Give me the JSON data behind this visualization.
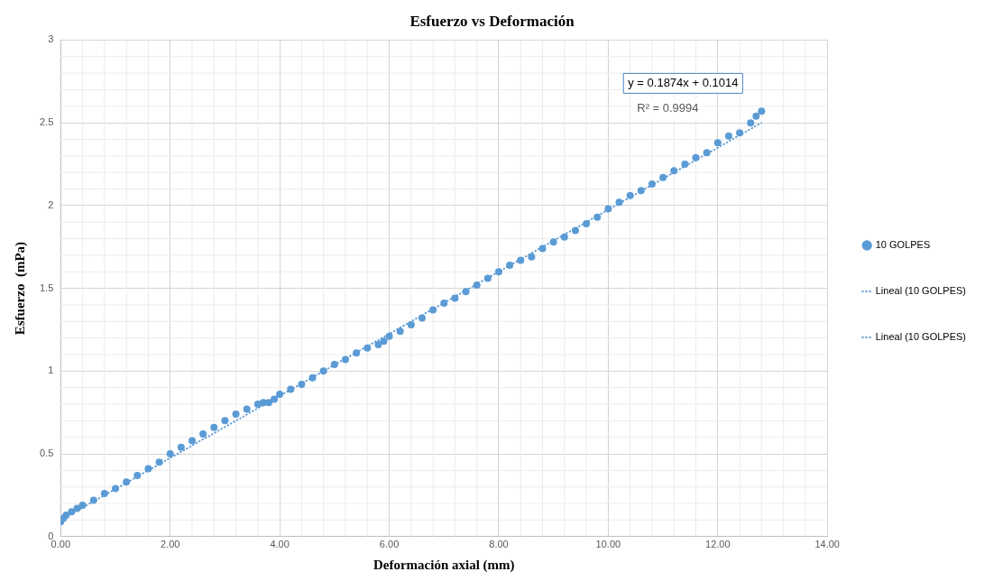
{
  "chart_data": {
    "type": "scatter",
    "title": "Esfuerzo vs Deformación",
    "xlabel": "Deformación axial (mm)",
    "ylabel": "Esfuerzo  (mPa)",
    "xlim": [
      0,
      14
    ],
    "xticks": [
      {
        "value": 0,
        "label": "0.00"
      },
      {
        "value": 2,
        "label": "2.00"
      },
      {
        "value": 4,
        "label": "4.00"
      },
      {
        "value": 6,
        "label": "6.00"
      },
      {
        "value": 8,
        "label": "8.00"
      },
      {
        "value": 10,
        "label": "10.00"
      },
      {
        "value": 12,
        "label": "12.00"
      },
      {
        "value": 14,
        "label": "14.00"
      }
    ],
    "ylim": [
      0,
      3
    ],
    "yticks": [
      0,
      0.5,
      1,
      1.5,
      2,
      2.5,
      3
    ],
    "grid": true,
    "legend": "right",
    "annotations": [
      "y = 0.1874x + 0.1014",
      "R² = 0.9994"
    ],
    "series": [
      {
        "name": "10 GOLPES",
        "color": "#5b9bd5",
        "marker": "circle",
        "x": [
          0,
          0.05,
          0.1,
          0.2,
          0.3,
          0.4,
          0.6,
          0.8,
          1.0,
          1.2,
          1.4,
          1.6,
          1.8,
          2.0,
          2.2,
          2.4,
          2.6,
          2.8,
          3.0,
          3.2,
          3.4,
          3.6,
          3.7,
          3.8,
          3.9,
          4.0,
          4.2,
          4.4,
          4.6,
          4.8,
          5.0,
          5.2,
          5.4,
          5.6,
          5.8,
          5.9,
          6.0,
          6.2,
          6.4,
          6.6,
          6.8,
          7.0,
          7.2,
          7.4,
          7.6,
          7.8,
          8.0,
          8.2,
          8.4,
          8.6,
          8.8,
          9.0,
          9.2,
          9.4,
          9.6,
          9.8,
          10.0,
          10.2,
          10.4,
          10.6,
          10.8,
          11.0,
          11.2,
          11.4,
          11.6,
          11.8,
          12.0,
          12.2,
          12.4,
          12.6,
          12.7,
          12.8
        ],
        "values": [
          0.09,
          0.11,
          0.13,
          0.15,
          0.17,
          0.19,
          0.22,
          0.26,
          0.29,
          0.33,
          0.37,
          0.41,
          0.45,
          0.5,
          0.54,
          0.58,
          0.62,
          0.66,
          0.7,
          0.74,
          0.77,
          0.8,
          0.81,
          0.81,
          0.83,
          0.86,
          0.89,
          0.92,
          0.96,
          1.0,
          1.04,
          1.07,
          1.11,
          1.14,
          1.16,
          1.18,
          1.21,
          1.24,
          1.28,
          1.32,
          1.37,
          1.41,
          1.44,
          1.48,
          1.52,
          1.56,
          1.6,
          1.64,
          1.67,
          1.69,
          1.74,
          1.78,
          1.81,
          1.85,
          1.89,
          1.93,
          1.98,
          2.02,
          2.06,
          2.09,
          2.13,
          2.17,
          2.21,
          2.25,
          2.29,
          2.32,
          2.38,
          2.42,
          2.44,
          2.5,
          2.54,
          2.57
        ]
      },
      {
        "name": "Lineal (10 GOLPES)",
        "type": "line",
        "color": "#5b9bd5",
        "line_style": "dotted",
        "x": [
          0,
          12.8
        ],
        "values": [
          0.1,
          2.5
        ]
      },
      {
        "name": "Lineal (10 GOLPES)",
        "type": "line",
        "color": "#5b9bd5",
        "line_style": "dotted",
        "x": [
          0,
          12.8
        ],
        "values": [
          0.1,
          2.5
        ]
      }
    ]
  }
}
